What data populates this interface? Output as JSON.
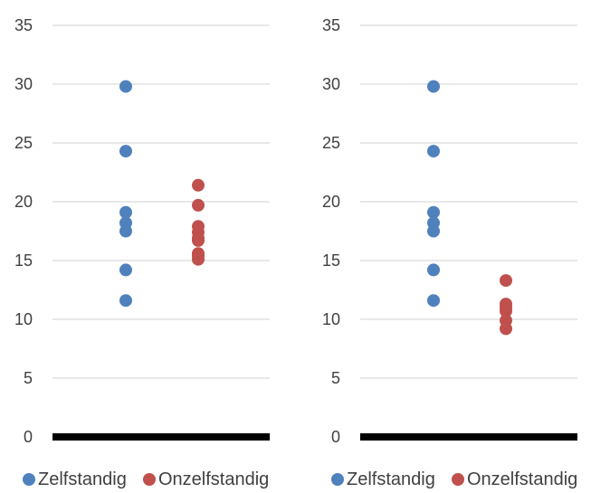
{
  "chart_data": [
    {
      "type": "scatter",
      "categories": [
        "Zelfstandig",
        "Onzelfstandig"
      ],
      "series": [
        {
          "name": "Zelfstandig",
          "color": "#4F81BD",
          "x": 1,
          "values": [
            29.8,
            24.3,
            19.1,
            18.2,
            17.5,
            14.2,
            11.6
          ]
        },
        {
          "name": "Onzelfstandig",
          "color": "#C0504D",
          "x": 2,
          "values": [
            21.4,
            19.7,
            17.9,
            17.4,
            16.9,
            16.7,
            15.6,
            15.4,
            15.1
          ]
        }
      ],
      "ylim": [
        0,
        35
      ],
      "yticks": [
        0,
        5,
        10,
        15,
        20,
        25,
        30,
        35
      ],
      "grid": true,
      "legend": "bottom"
    },
    {
      "type": "scatter",
      "categories": [
        "Zelfstandig",
        "Onzelfstandig"
      ],
      "series": [
        {
          "name": "Zelfstandig",
          "color": "#4F81BD",
          "x": 1,
          "values": [
            29.8,
            24.3,
            19.1,
            18.2,
            17.5,
            14.2,
            11.6
          ]
        },
        {
          "name": "Onzelfstandig",
          "color": "#C0504D",
          "x": 2,
          "values": [
            13.3,
            11.3,
            11.0,
            10.7,
            9.9,
            9.2
          ]
        }
      ],
      "ylim": [
        0,
        35
      ],
      "yticks": [
        0,
        5,
        10,
        15,
        20,
        25,
        30,
        35
      ],
      "grid": true,
      "legend": "bottom"
    }
  ]
}
